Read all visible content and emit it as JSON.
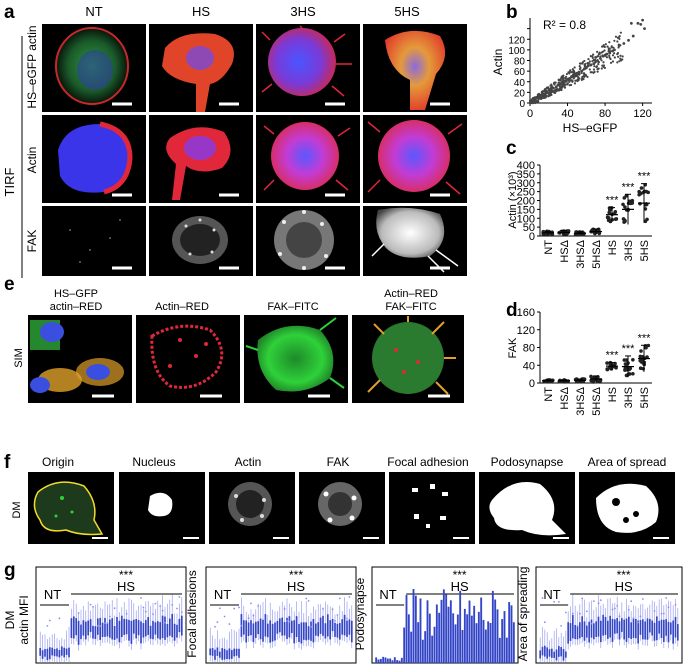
{
  "panel_letters": [
    "a",
    "b",
    "c",
    "d",
    "e",
    "f",
    "g"
  ],
  "panel_a": {
    "col_headers": [
      "NT",
      "HS",
      "3HS",
      "5HS"
    ],
    "group_label": "TIRF",
    "row_labels": [
      "HS–eGFP actin",
      "Actin",
      "FAK"
    ]
  },
  "panel_e": {
    "row_label": "SIM",
    "col_headers": [
      [
        "HS–GFP",
        "actin–RED"
      ],
      [
        "Actin–RED"
      ],
      [
        "FAK–FITC"
      ],
      [
        "Actin–RED",
        "FAK–FITC"
      ]
    ]
  },
  "panel_f": {
    "row_label": "DM",
    "col_headers": [
      "Origin",
      "Nucleus",
      "Actin",
      "FAK",
      "Focal adhesion",
      "Podosynapse",
      "Area of spread"
    ]
  },
  "panel_g": {
    "ylabels": [
      [
        "DM",
        "actin MFI"
      ],
      [
        "Focal adhesions"
      ],
      [
        "Podosynapse"
      ],
      [
        "Area of spreading"
      ]
    ],
    "group_nt": "NT",
    "group_hs": "HS",
    "significance": "***"
  },
  "colors": {
    "red": "#e52822",
    "green": "#2fd13a",
    "blue": "#3a4fe0",
    "scatter": "#444444",
    "box_blue": "#3446c7",
    "point_light": "#8a8ff0",
    "line_yellow": "#f2dc2a"
  },
  "chart_data": [
    {
      "panel": "b",
      "type": "scatter",
      "annotation": "R² = 0.8",
      "xlabel": "HS–eGFP",
      "ylabel": "Actin",
      "xlim": [
        0,
        130
      ],
      "ylim": [
        0,
        160
      ],
      "xticks": [
        0,
        40,
        80,
        120
      ],
      "yticks": [
        0,
        20,
        40,
        60,
        80,
        100,
        120,
        140
      ],
      "trend": {
        "slope": 1.1,
        "note": "approximate point cloud, R² = 0.8"
      },
      "sample_points": [
        [
          2,
          3
        ],
        [
          5,
          6
        ],
        [
          8,
          10
        ],
        [
          10,
          12
        ],
        [
          12,
          15
        ],
        [
          15,
          17
        ],
        [
          18,
          20
        ],
        [
          20,
          24
        ],
        [
          22,
          26
        ],
        [
          25,
          28
        ],
        [
          28,
          30
        ],
        [
          30,
          34
        ],
        [
          32,
          36
        ],
        [
          35,
          40
        ],
        [
          38,
          42
        ],
        [
          40,
          45
        ],
        [
          42,
          46
        ],
        [
          45,
          50
        ],
        [
          48,
          54
        ],
        [
          50,
          56
        ],
        [
          52,
          58
        ],
        [
          55,
          60
        ],
        [
          58,
          64
        ],
        [
          60,
          66
        ],
        [
          62,
          70
        ],
        [
          65,
          72
        ],
        [
          68,
          74
        ],
        [
          70,
          78
        ],
        [
          72,
          80
        ],
        [
          75,
          84
        ],
        [
          78,
          88
        ],
        [
          80,
          90
        ],
        [
          82,
          92
        ],
        [
          85,
          94
        ],
        [
          88,
          98
        ],
        [
          90,
          100
        ],
        [
          95,
          108
        ],
        [
          100,
          112
        ],
        [
          105,
          118
        ],
        [
          110,
          126
        ],
        [
          115,
          150
        ],
        [
          118,
          148
        ],
        [
          120,
          156
        ],
        [
          122,
          140
        ],
        [
          108,
          150
        ]
      ]
    },
    {
      "panel": "c",
      "type": "scatter",
      "ylabel": "Actin (×10³)",
      "ylim": [
        0,
        400
      ],
      "yticks": [
        0,
        50,
        100,
        150,
        200,
        250,
        300,
        350,
        400
      ],
      "categories": [
        "NT",
        "HSΔ",
        "3HSΔ",
        "5HSΔ",
        "HS",
        "3HS",
        "5HS"
      ],
      "means": [
        18,
        20,
        15,
        25,
        120,
        150,
        185
      ],
      "sd": [
        8,
        10,
        8,
        15,
        40,
        85,
        110
      ],
      "significance": [
        "",
        "",
        "",
        "",
        "***",
        "***",
        "***"
      ]
    },
    {
      "panel": "d",
      "type": "scatter",
      "ylabel": "FAK",
      "ylim": [
        0,
        160
      ],
      "yticks": [
        0,
        40,
        80,
        120,
        160
      ],
      "categories": [
        "NT",
        "HSΔ",
        "3HSΔ",
        "5HSΔ",
        "HS",
        "3HS",
        "5HS"
      ],
      "means": [
        5,
        5,
        6,
        9,
        38,
        37,
        55
      ],
      "sd": [
        2,
        2,
        3,
        7,
        8,
        24,
        30
      ],
      "significance": [
        "",
        "",
        "",
        "",
        "***",
        "***",
        "***"
      ]
    }
  ]
}
